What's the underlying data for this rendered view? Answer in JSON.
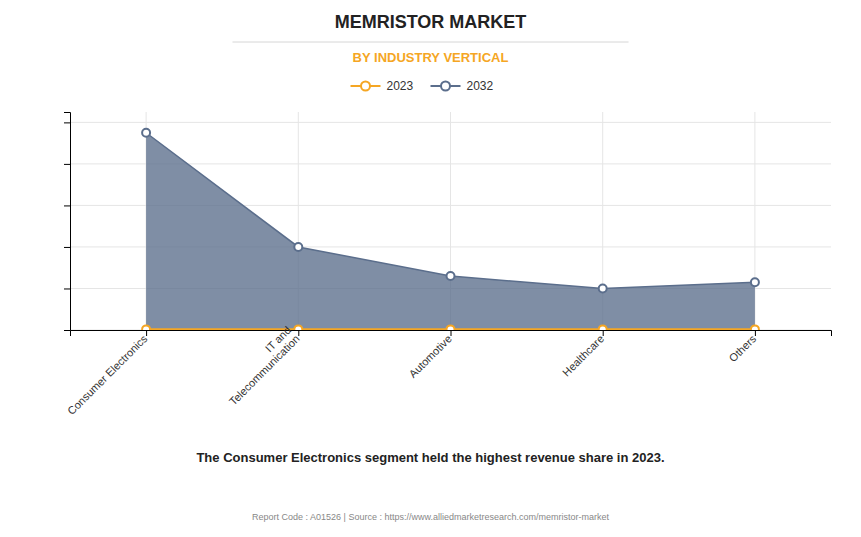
{
  "chart_data": {
    "type": "area",
    "title": "MEMRISTOR MARKET",
    "subtitle": "BY INDUSTRY VERTICAL",
    "categories": [
      "Consumer Electronics",
      "IT and\nTelecommunication",
      "Automotive",
      "Healthcare",
      "Others"
    ],
    "series": [
      {
        "name": "2023",
        "color": "#F5A623",
        "marker": "circle",
        "values": [
          0.03,
          0.03,
          0.03,
          0.03,
          0.03
        ]
      },
      {
        "name": "2032",
        "color": "#5B6E8C",
        "marker": "circle",
        "values": [
          9.5,
          4.0,
          2.6,
          2.0,
          2.3
        ]
      }
    ],
    "ylim": [
      0,
      10.5
    ],
    "yticks": [
      0,
      2,
      4,
      6,
      8,
      10
    ],
    "tick_labels": "x",
    "grid": true,
    "legend": "top",
    "annotations": [
      "The Consumer Electronics segment held the highest revenue share in 2023.",
      "Report Code : A01526  |  Source : https://www.alliedmarketresearch.com/memristor-market"
    ]
  }
}
